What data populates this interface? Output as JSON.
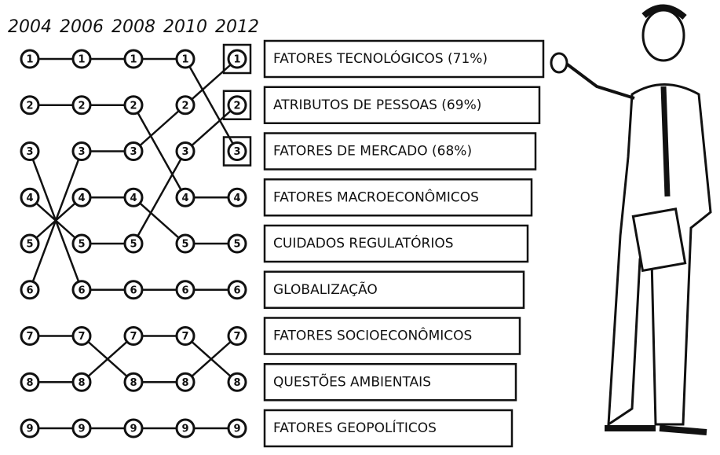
{
  "chart_data": {
    "type": "bump",
    "categories": [
      "2004",
      "2006",
      "2008",
      "2010",
      "2012"
    ],
    "ylim": [
      1,
      9
    ],
    "y_inverted": true,
    "color": "#111111",
    "series": [
      {
        "name": "FATORES TECNOLÓGICOS (71%)",
        "values": [
          6,
          3,
          3,
          2,
          1
        ]
      },
      {
        "name": "ATRIBUTOS DE PESSOAS (69%)",
        "values": [
          4,
          5,
          5,
          3,
          2
        ]
      },
      {
        "name": "FATORES DE MERCADO (68%)",
        "values": [
          1,
          1,
          1,
          1,
          3
        ]
      },
      {
        "name": "FATORES MACROECONÔMICOS",
        "values": [
          2,
          2,
          2,
          4,
          4
        ]
      },
      {
        "name": "CUIDADOS REGULATÓRIOS",
        "values": [
          5,
          4,
          4,
          5,
          5
        ]
      },
      {
        "name": "GLOBALIZAÇÃO",
        "values": [
          3,
          6,
          6,
          6,
          6
        ]
      },
      {
        "name": "FATORES SOCIOECONÔMICOS",
        "values": [
          7,
          7,
          8,
          8,
          7
        ]
      },
      {
        "name": "QUESTÕES AMBIENTAIS",
        "values": [
          8,
          8,
          7,
          7,
          8
        ]
      },
      {
        "name": "FATORES GEOPOLÍTICOS",
        "values": [
          9,
          9,
          9,
          9,
          9
        ]
      }
    ]
  }
}
